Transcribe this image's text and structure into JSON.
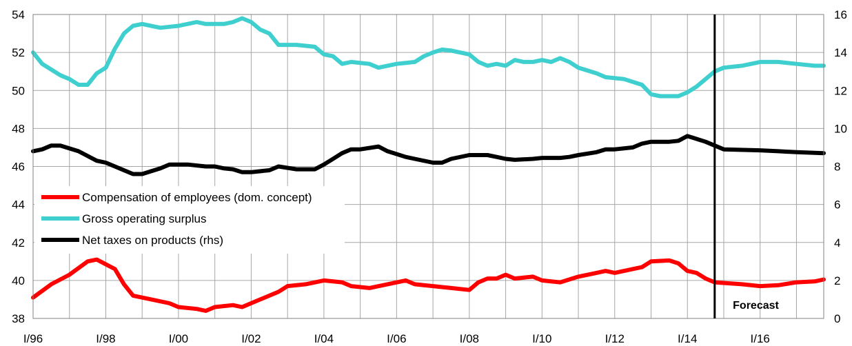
{
  "chart_data": {
    "type": "line",
    "title": "",
    "xlabel": "",
    "ylabel": "",
    "x_tick_labels": [
      "I/96",
      "I/98",
      "I/00",
      "I/02",
      "I/04",
      "I/06",
      "I/08",
      "I/10",
      "I/12",
      "I/14",
      "I/16"
    ],
    "y_left": {
      "range": [
        38,
        54
      ],
      "ticks": [
        "38",
        "40",
        "42",
        "44",
        "46",
        "48",
        "50",
        "52",
        "54"
      ]
    },
    "y_right": {
      "range": [
        0,
        16
      ],
      "ticks": [
        "0",
        "2",
        "4",
        "6",
        "8",
        "10",
        "12",
        "14",
        "16"
      ]
    },
    "x_range": [
      1996.0,
      2017.75
    ],
    "grid": true,
    "legend_position": "left-middle",
    "forecast_start": 2014.75,
    "annotation": "Forecast",
    "series": [
      {
        "name": "Compensation of employees (dom. concept)",
        "axis": "left",
        "color": "#ff0000",
        "values": [
          [
            1996.0,
            39.1
          ],
          [
            1996.5,
            39.8
          ],
          [
            1997.0,
            40.3
          ],
          [
            1997.5,
            41.0
          ],
          [
            1997.75,
            41.1
          ],
          [
            1998.25,
            40.6
          ],
          [
            1998.5,
            39.8
          ],
          [
            1998.75,
            39.2
          ],
          [
            1999.25,
            39.0
          ],
          [
            1999.75,
            38.8
          ],
          [
            2000.0,
            38.6
          ],
          [
            2000.5,
            38.5
          ],
          [
            2000.75,
            38.4
          ],
          [
            2001.0,
            38.6
          ],
          [
            2001.5,
            38.7
          ],
          [
            2001.75,
            38.6
          ],
          [
            2002.25,
            39.0
          ],
          [
            2002.75,
            39.4
          ],
          [
            2003.0,
            39.7
          ],
          [
            2003.5,
            39.8
          ],
          [
            2004.0,
            40.0
          ],
          [
            2004.5,
            39.9
          ],
          [
            2004.75,
            39.7
          ],
          [
            2005.25,
            39.6
          ],
          [
            2005.75,
            39.8
          ],
          [
            2006.25,
            40.0
          ],
          [
            2006.5,
            39.8
          ],
          [
            2007.0,
            39.7
          ],
          [
            2007.5,
            39.6
          ],
          [
            2008.0,
            39.5
          ],
          [
            2008.25,
            39.9
          ],
          [
            2008.5,
            40.1
          ],
          [
            2008.75,
            40.1
          ],
          [
            2009.0,
            40.3
          ],
          [
            2009.25,
            40.1
          ],
          [
            2009.75,
            40.2
          ],
          [
            2010.0,
            40.0
          ],
          [
            2010.5,
            39.9
          ],
          [
            2011.0,
            40.2
          ],
          [
            2011.5,
            40.4
          ],
          [
            2011.75,
            40.5
          ],
          [
            2012.0,
            40.4
          ],
          [
            2012.5,
            40.6
          ],
          [
            2012.75,
            40.7
          ],
          [
            2013.0,
            41.0
          ],
          [
            2013.5,
            41.05
          ],
          [
            2013.75,
            40.9
          ],
          [
            2014.0,
            40.5
          ],
          [
            2014.25,
            40.4
          ],
          [
            2014.5,
            40.1
          ],
          [
            2014.75,
            39.9
          ],
          [
            2015.5,
            39.8
          ],
          [
            2016.0,
            39.7
          ],
          [
            2016.5,
            39.75
          ],
          [
            2017.0,
            39.9
          ],
          [
            2017.5,
            39.95
          ],
          [
            2017.75,
            40.05
          ]
        ]
      },
      {
        "name": "Gross operating surplus",
        "axis": "left",
        "color": "#3fcfcf",
        "values": [
          [
            1996.0,
            52.0
          ],
          [
            1996.25,
            51.4
          ],
          [
            1996.75,
            50.8
          ],
          [
            1997.0,
            50.6
          ],
          [
            1997.25,
            50.3
          ],
          [
            1997.5,
            50.3
          ],
          [
            1997.75,
            50.9
          ],
          [
            1998.0,
            51.2
          ],
          [
            1998.25,
            52.2
          ],
          [
            1998.5,
            53.0
          ],
          [
            1998.75,
            53.4
          ],
          [
            1999.0,
            53.5
          ],
          [
            1999.5,
            53.3
          ],
          [
            2000.0,
            53.4
          ],
          [
            2000.5,
            53.6
          ],
          [
            2000.75,
            53.5
          ],
          [
            2001.25,
            53.5
          ],
          [
            2001.5,
            53.6
          ],
          [
            2001.75,
            53.8
          ],
          [
            2002.0,
            53.6
          ],
          [
            2002.25,
            53.2
          ],
          [
            2002.5,
            53.0
          ],
          [
            2002.75,
            52.4
          ],
          [
            2003.25,
            52.4
          ],
          [
            2003.75,
            52.3
          ],
          [
            2004.0,
            51.9
          ],
          [
            2004.25,
            51.8
          ],
          [
            2004.5,
            51.4
          ],
          [
            2004.75,
            51.5
          ],
          [
            2005.25,
            51.4
          ],
          [
            2005.5,
            51.2
          ],
          [
            2005.75,
            51.3
          ],
          [
            2006.0,
            51.4
          ],
          [
            2006.5,
            51.5
          ],
          [
            2006.75,
            51.8
          ],
          [
            2007.0,
            52.0
          ],
          [
            2007.25,
            52.15
          ],
          [
            2007.5,
            52.1
          ],
          [
            2008.0,
            51.9
          ],
          [
            2008.25,
            51.5
          ],
          [
            2008.5,
            51.3
          ],
          [
            2008.75,
            51.4
          ],
          [
            2009.0,
            51.3
          ],
          [
            2009.25,
            51.6
          ],
          [
            2009.5,
            51.5
          ],
          [
            2009.75,
            51.5
          ],
          [
            2010.0,
            51.6
          ],
          [
            2010.25,
            51.5
          ],
          [
            2010.5,
            51.7
          ],
          [
            2010.75,
            51.5
          ],
          [
            2011.0,
            51.2
          ],
          [
            2011.5,
            50.9
          ],
          [
            2011.75,
            50.7
          ],
          [
            2012.25,
            50.6
          ],
          [
            2012.75,
            50.3
          ],
          [
            2013.0,
            49.8
          ],
          [
            2013.25,
            49.7
          ],
          [
            2013.75,
            49.7
          ],
          [
            2014.0,
            49.9
          ],
          [
            2014.25,
            50.2
          ],
          [
            2014.5,
            50.6
          ],
          [
            2014.75,
            51.0
          ],
          [
            2015.0,
            51.2
          ],
          [
            2015.5,
            51.3
          ],
          [
            2016.0,
            51.5
          ],
          [
            2016.25,
            51.5
          ],
          [
            2016.5,
            51.5
          ],
          [
            2017.0,
            51.4
          ],
          [
            2017.5,
            51.3
          ],
          [
            2017.75,
            51.3
          ]
        ]
      },
      {
        "name": "Net taxes on products (rhs)",
        "axis": "right",
        "color": "#000000",
        "values": [
          [
            1996.0,
            8.8
          ],
          [
            1996.25,
            8.9
          ],
          [
            1996.5,
            9.1
          ],
          [
            1996.75,
            9.1
          ],
          [
            1997.25,
            8.8
          ],
          [
            1997.75,
            8.3
          ],
          [
            1998.0,
            8.2
          ],
          [
            1998.5,
            7.8
          ],
          [
            1998.75,
            7.6
          ],
          [
            1999.0,
            7.6
          ],
          [
            1999.5,
            7.9
          ],
          [
            1999.75,
            8.1
          ],
          [
            2000.0,
            8.1
          ],
          [
            2000.25,
            8.1
          ],
          [
            2000.75,
            8.0
          ],
          [
            2001.0,
            8.0
          ],
          [
            2001.25,
            7.9
          ],
          [
            2001.5,
            7.85
          ],
          [
            2001.75,
            7.7
          ],
          [
            2002.0,
            7.7
          ],
          [
            2002.5,
            7.8
          ],
          [
            2002.75,
            8.0
          ],
          [
            2003.25,
            7.85
          ],
          [
            2003.75,
            7.85
          ],
          [
            2004.0,
            8.1
          ],
          [
            2004.25,
            8.4
          ],
          [
            2004.5,
            8.7
          ],
          [
            2004.75,
            8.9
          ],
          [
            2005.0,
            8.9
          ],
          [
            2005.5,
            9.05
          ],
          [
            2005.75,
            8.8
          ],
          [
            2006.25,
            8.5
          ],
          [
            2006.5,
            8.4
          ],
          [
            2007.0,
            8.2
          ],
          [
            2007.25,
            8.2
          ],
          [
            2007.5,
            8.4
          ],
          [
            2008.0,
            8.6
          ],
          [
            2008.5,
            8.6
          ],
          [
            2008.75,
            8.5
          ],
          [
            2009.0,
            8.4
          ],
          [
            2009.25,
            8.35
          ],
          [
            2009.75,
            8.4
          ],
          [
            2010.0,
            8.45
          ],
          [
            2010.5,
            8.45
          ],
          [
            2010.75,
            8.5
          ],
          [
            2011.0,
            8.6
          ],
          [
            2011.5,
            8.75
          ],
          [
            2011.75,
            8.9
          ],
          [
            2012.0,
            8.9
          ],
          [
            2012.5,
            9.0
          ],
          [
            2012.75,
            9.2
          ],
          [
            2013.0,
            9.3
          ],
          [
            2013.5,
            9.3
          ],
          [
            2013.75,
            9.35
          ],
          [
            2014.0,
            9.6
          ],
          [
            2014.25,
            9.45
          ],
          [
            2014.5,
            9.3
          ],
          [
            2014.75,
            9.1
          ],
          [
            2015.0,
            8.9
          ],
          [
            2016.0,
            8.85
          ],
          [
            2016.5,
            8.8
          ],
          [
            2017.0,
            8.75
          ],
          [
            2017.75,
            8.7
          ]
        ]
      }
    ]
  }
}
